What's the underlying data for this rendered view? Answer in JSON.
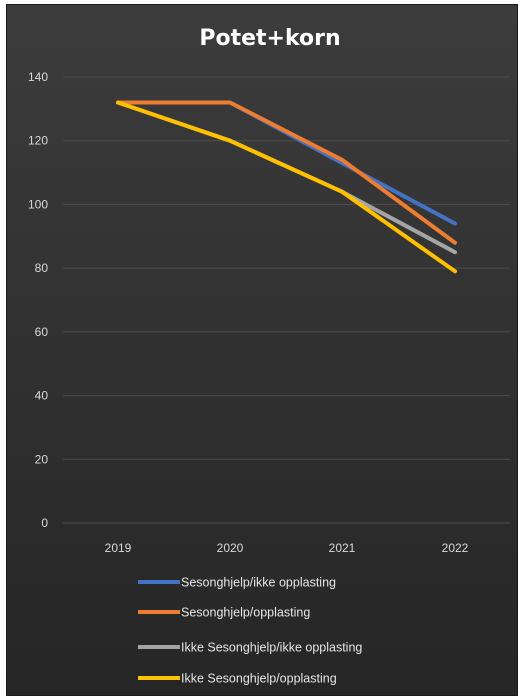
{
  "chart_data": {
    "type": "line",
    "title": "Potet+korn",
    "categories": [
      "2019",
      "2020",
      "2021",
      "2022"
    ],
    "ylim": [
      0,
      140
    ],
    "yticks": [
      0,
      20,
      40,
      60,
      80,
      100,
      120,
      140
    ],
    "grid": true,
    "legend_position": "bottom",
    "series": [
      {
        "name": "Sesonghjelp/ikke opplasting",
        "color": "#4472c4",
        "values": [
          132,
          132,
          113,
          94
        ]
      },
      {
        "name": "Sesonghjelp/opplasting",
        "color": "#ed7d31",
        "values": [
          132,
          132,
          114,
          88
        ]
      },
      {
        "name": "Ikke Sesonghjelp/ikke opplasting",
        "color": "#a5a5a5",
        "values": [
          132,
          120,
          104,
          85
        ]
      },
      {
        "name": "Ikke Sesonghjelp/opplasting",
        "color": "#ffc000",
        "values": [
          132,
          120,
          104,
          79
        ]
      }
    ],
    "colors": {
      "background": "#333333",
      "grid": "#4d4d4d",
      "text": "#d9d9d9",
      "title": "#ffffff"
    }
  }
}
